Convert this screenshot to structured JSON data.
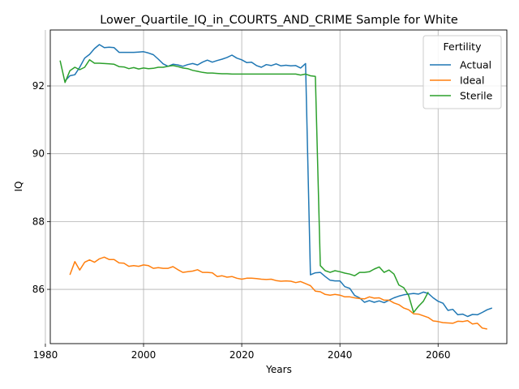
{
  "chart_data": {
    "type": "line",
    "title": "Lower_Quartile_IQ_in_COURTS_AND_CRIME Sample for White",
    "xlabel": "Years",
    "ylabel": "IQ",
    "xlim": [
      1981,
      2074
    ],
    "ylim": [
      84.4,
      93.65
    ],
    "xticks": [
      1980,
      2000,
      2020,
      2040,
      2060
    ],
    "yticks": [
      86,
      88,
      90,
      92
    ],
    "grid": true,
    "legend": {
      "title": "Fertility",
      "placement": "top-right"
    },
    "series": [
      {
        "name": "Actual",
        "color": "#1f77b4",
        "points": [
          [
            1984,
            92.15
          ],
          [
            1985,
            92.3
          ],
          [
            1986,
            92.33
          ],
          [
            1987,
            92.55
          ],
          [
            1988,
            92.82
          ],
          [
            1989,
            92.93
          ],
          [
            1990,
            93.1
          ],
          [
            1991,
            93.22
          ],
          [
            1992,
            93.13
          ],
          [
            1993,
            93.14
          ],
          [
            1994,
            93.13
          ],
          [
            1995,
            92.99
          ],
          [
            1996,
            92.99
          ],
          [
            1997,
            92.99
          ],
          [
            1998,
            92.99
          ],
          [
            1999,
            93.0
          ],
          [
            2000,
            93.01
          ],
          [
            2001,
            92.97
          ],
          [
            2002,
            92.92
          ],
          [
            2003,
            92.79
          ],
          [
            2004,
            92.65
          ],
          [
            2005,
            92.58
          ],
          [
            2006,
            92.64
          ],
          [
            2007,
            92.62
          ],
          [
            2008,
            92.58
          ],
          [
            2009,
            92.63
          ],
          [
            2010,
            92.66
          ],
          [
            2011,
            92.62
          ],
          [
            2012,
            92.7
          ],
          [
            2013,
            92.76
          ],
          [
            2014,
            92.7
          ],
          [
            2015,
            92.75
          ],
          [
            2016,
            92.79
          ],
          [
            2017,
            92.84
          ],
          [
            2018,
            92.91
          ],
          [
            2019,
            92.82
          ],
          [
            2020,
            92.77
          ],
          [
            2021,
            92.69
          ],
          [
            2022,
            92.7
          ],
          [
            2023,
            92.6
          ],
          [
            2024,
            92.55
          ],
          [
            2025,
            92.63
          ],
          [
            2026,
            92.6
          ],
          [
            2027,
            92.65
          ],
          [
            2028,
            92.59
          ],
          [
            2029,
            92.61
          ],
          [
            2030,
            92.59
          ],
          [
            2031,
            92.6
          ],
          [
            2032,
            92.53
          ],
          [
            2033,
            92.66
          ],
          [
            2034,
            86.43
          ],
          [
            2035,
            86.49
          ],
          [
            2036,
            86.5
          ],
          [
            2037,
            86.38
          ],
          [
            2038,
            86.27
          ],
          [
            2039,
            86.25
          ],
          [
            2040,
            86.25
          ],
          [
            2041,
            86.08
          ],
          [
            2042,
            86.03
          ],
          [
            2043,
            85.82
          ],
          [
            2044,
            85.75
          ],
          [
            2045,
            85.62
          ],
          [
            2046,
            85.67
          ],
          [
            2047,
            85.62
          ],
          [
            2048,
            85.66
          ],
          [
            2049,
            85.61
          ],
          [
            2050,
            85.68
          ],
          [
            2051,
            85.75
          ],
          [
            2052,
            85.8
          ],
          [
            2053,
            85.84
          ],
          [
            2054,
            85.86
          ],
          [
            2055,
            85.88
          ],
          [
            2056,
            85.86
          ],
          [
            2057,
            85.92
          ],
          [
            2058,
            85.88
          ],
          [
            2059,
            85.75
          ],
          [
            2060,
            85.65
          ],
          [
            2061,
            85.59
          ],
          [
            2062,
            85.38
          ],
          [
            2063,
            85.41
          ],
          [
            2064,
            85.25
          ],
          [
            2065,
            85.27
          ],
          [
            2066,
            85.2
          ],
          [
            2067,
            85.26
          ],
          [
            2068,
            85.25
          ],
          [
            2069,
            85.32
          ],
          [
            2070,
            85.4
          ],
          [
            2071,
            85.45
          ]
        ]
      },
      {
        "name": "Ideal",
        "color": "#ff7f0e",
        "points": [
          [
            1985,
            86.43
          ],
          [
            1986,
            86.82
          ],
          [
            1987,
            86.57
          ],
          [
            1988,
            86.8
          ],
          [
            1989,
            86.87
          ],
          [
            1990,
            86.8
          ],
          [
            1991,
            86.9
          ],
          [
            1992,
            86.95
          ],
          [
            1993,
            86.88
          ],
          [
            1994,
            86.88
          ],
          [
            1995,
            86.78
          ],
          [
            1996,
            86.77
          ],
          [
            1997,
            86.68
          ],
          [
            1998,
            86.7
          ],
          [
            1999,
            86.68
          ],
          [
            2000,
            86.72
          ],
          [
            2001,
            86.7
          ],
          [
            2002,
            86.62
          ],
          [
            2003,
            86.64
          ],
          [
            2004,
            86.62
          ],
          [
            2005,
            86.62
          ],
          [
            2006,
            86.67
          ],
          [
            2007,
            86.58
          ],
          [
            2008,
            86.5
          ],
          [
            2009,
            86.52
          ],
          [
            2010,
            86.54
          ],
          [
            2011,
            86.58
          ],
          [
            2012,
            86.5
          ],
          [
            2013,
            86.5
          ],
          [
            2014,
            86.49
          ],
          [
            2015,
            86.38
          ],
          [
            2016,
            86.4
          ],
          [
            2017,
            86.36
          ],
          [
            2018,
            86.38
          ],
          [
            2019,
            86.33
          ],
          [
            2020,
            86.3
          ],
          [
            2021,
            86.33
          ],
          [
            2022,
            86.33
          ],
          [
            2023,
            86.32
          ],
          [
            2024,
            86.3
          ],
          [
            2025,
            86.29
          ],
          [
            2026,
            86.3
          ],
          [
            2027,
            86.26
          ],
          [
            2028,
            86.24
          ],
          [
            2029,
            86.25
          ],
          [
            2030,
            86.24
          ],
          [
            2031,
            86.2
          ],
          [
            2032,
            86.23
          ],
          [
            2033,
            86.17
          ],
          [
            2034,
            86.11
          ],
          [
            2035,
            85.95
          ],
          [
            2036,
            85.93
          ],
          [
            2037,
            85.85
          ],
          [
            2038,
            85.83
          ],
          [
            2039,
            85.85
          ],
          [
            2040,
            85.83
          ],
          [
            2041,
            85.78
          ],
          [
            2042,
            85.78
          ],
          [
            2043,
            85.75
          ],
          [
            2044,
            85.73
          ],
          [
            2045,
            85.72
          ],
          [
            2046,
            85.78
          ],
          [
            2047,
            85.74
          ],
          [
            2048,
            85.75
          ],
          [
            2049,
            85.68
          ],
          [
            2050,
            85.68
          ],
          [
            2051,
            85.6
          ],
          [
            2052,
            85.55
          ],
          [
            2053,
            85.45
          ],
          [
            2054,
            85.4
          ],
          [
            2055,
            85.28
          ],
          [
            2056,
            85.27
          ],
          [
            2057,
            85.22
          ],
          [
            2058,
            85.17
          ],
          [
            2059,
            85.07
          ],
          [
            2060,
            85.05
          ],
          [
            2061,
            85.02
          ],
          [
            2062,
            85.01
          ],
          [
            2063,
            85.0
          ],
          [
            2064,
            85.06
          ],
          [
            2065,
            85.05
          ],
          [
            2066,
            85.08
          ],
          [
            2067,
            84.98
          ],
          [
            2068,
            85.0
          ],
          [
            2069,
            84.86
          ],
          [
            2070,
            84.83
          ]
        ]
      },
      {
        "name": "Sterile",
        "color": "#2ca02c",
        "points": [
          [
            1983,
            92.75
          ],
          [
            1984,
            92.1
          ],
          [
            1985,
            92.45
          ],
          [
            1986,
            92.55
          ],
          [
            1987,
            92.48
          ],
          [
            1988,
            92.55
          ],
          [
            1989,
            92.77
          ],
          [
            1990,
            92.67
          ],
          [
            1991,
            92.67
          ],
          [
            1992,
            92.66
          ],
          [
            1993,
            92.65
          ],
          [
            1994,
            92.64
          ],
          [
            1995,
            92.57
          ],
          [
            1996,
            92.56
          ],
          [
            1997,
            92.51
          ],
          [
            1998,
            92.54
          ],
          [
            1999,
            92.5
          ],
          [
            2000,
            92.53
          ],
          [
            2001,
            92.51
          ],
          [
            2002,
            92.52
          ],
          [
            2003,
            92.55
          ],
          [
            2004,
            92.55
          ],
          [
            2005,
            92.58
          ],
          [
            2006,
            92.6
          ],
          [
            2007,
            92.57
          ],
          [
            2008,
            92.53
          ],
          [
            2009,
            92.51
          ],
          [
            2010,
            92.46
          ],
          [
            2011,
            92.43
          ],
          [
            2012,
            92.4
          ],
          [
            2013,
            92.38
          ],
          [
            2014,
            92.38
          ],
          [
            2015,
            92.37
          ],
          [
            2016,
            92.36
          ],
          [
            2017,
            92.36
          ],
          [
            2018,
            92.35
          ],
          [
            2019,
            92.35
          ],
          [
            2020,
            92.35
          ],
          [
            2021,
            92.35
          ],
          [
            2022,
            92.35
          ],
          [
            2023,
            92.35
          ],
          [
            2024,
            92.35
          ],
          [
            2025,
            92.35
          ],
          [
            2026,
            92.35
          ],
          [
            2027,
            92.35
          ],
          [
            2028,
            92.35
          ],
          [
            2029,
            92.35
          ],
          [
            2030,
            92.35
          ],
          [
            2031,
            92.35
          ],
          [
            2032,
            92.32
          ],
          [
            2033,
            92.35
          ],
          [
            2034,
            92.3
          ],
          [
            2035,
            92.28
          ],
          [
            2036,
            86.7
          ],
          [
            2037,
            86.55
          ],
          [
            2038,
            86.5
          ],
          [
            2039,
            86.55
          ],
          [
            2040,
            86.52
          ],
          [
            2041,
            86.48
          ],
          [
            2042,
            86.45
          ],
          [
            2043,
            86.4
          ],
          [
            2044,
            86.5
          ],
          [
            2045,
            86.5
          ],
          [
            2046,
            86.52
          ],
          [
            2047,
            86.6
          ],
          [
            2048,
            86.66
          ],
          [
            2049,
            86.5
          ],
          [
            2050,
            86.57
          ],
          [
            2051,
            86.45
          ],
          [
            2052,
            86.13
          ],
          [
            2053,
            86.05
          ],
          [
            2054,
            85.82
          ],
          [
            2055,
            85.32
          ],
          [
            2056,
            85.5
          ],
          [
            2057,
            85.65
          ],
          [
            2058,
            85.92
          ]
        ]
      }
    ]
  }
}
